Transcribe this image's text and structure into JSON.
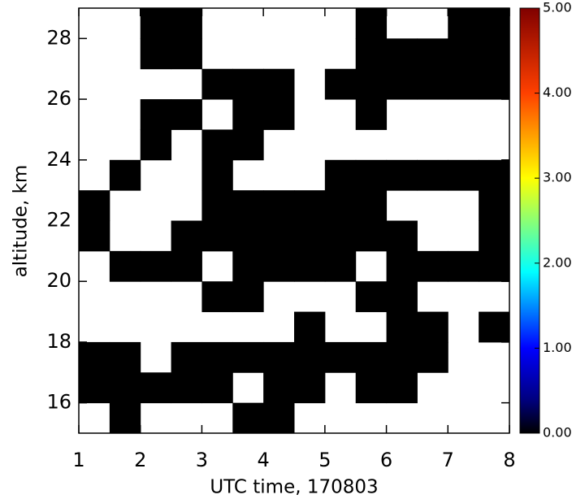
{
  "chart_data": {
    "type": "heatmap",
    "x_label": "UTC time, 170803",
    "y_label": "altitude, km",
    "xlim": [
      1,
      8
    ],
    "xticks": [
      1,
      2,
      3,
      4,
      5,
      6,
      7,
      8
    ],
    "ylim": [
      15,
      29
    ],
    "yticks": [
      16,
      18,
      20,
      22,
      24,
      26,
      28
    ],
    "zlim": [
      0,
      5
    ],
    "zticks": [
      {
        "value": 0,
        "label": "0.00"
      },
      {
        "value": 1,
        "label": "1.00"
      },
      {
        "value": 2,
        "label": "2.00"
      },
      {
        "value": 3,
        "label": "3.00"
      },
      {
        "value": 4,
        "label": "4.00"
      },
      {
        "value": 5,
        "label": "5.00"
      }
    ],
    "z": [
      [
        null,
        null,
        0,
        0,
        null,
        null,
        null,
        null,
        null,
        0,
        null,
        null,
        0,
        0
      ],
      [
        null,
        null,
        0,
        0,
        null,
        null,
        null,
        null,
        null,
        0,
        0,
        0,
        0,
        0
      ],
      [
        null,
        null,
        null,
        null,
        0,
        0,
        0,
        null,
        0,
        0,
        0,
        0,
        0,
        0
      ],
      [
        null,
        null,
        0,
        0,
        null,
        0,
        0,
        null,
        null,
        0,
        null,
        null,
        null,
        null
      ],
      [
        null,
        null,
        0,
        null,
        0,
        0,
        null,
        null,
        null,
        null,
        null,
        null,
        null,
        null
      ],
      [
        null,
        0,
        null,
        null,
        0,
        null,
        null,
        null,
        0,
        0,
        0,
        0,
        0,
        0
      ],
      [
        0,
        null,
        null,
        null,
        0,
        0,
        0,
        0,
        0,
        0,
        null,
        null,
        null,
        0
      ],
      [
        0,
        null,
        null,
        0,
        0,
        0,
        0,
        0,
        0,
        0,
        0,
        null,
        null,
        0
      ],
      [
        null,
        0,
        0,
        0,
        null,
        0,
        0,
        0,
        0,
        null,
        0,
        0,
        0,
        0
      ],
      [
        null,
        null,
        null,
        null,
        0,
        0,
        null,
        null,
        null,
        0,
        0,
        null,
        null,
        null
      ],
      [
        null,
        null,
        null,
        null,
        null,
        null,
        null,
        0,
        null,
        null,
        0,
        0,
        null,
        0
      ],
      [
        0,
        0,
        null,
        0,
        0,
        0,
        0,
        0,
        0,
        0,
        0,
        0,
        null,
        null
      ],
      [
        0,
        0,
        0,
        0,
        0,
        null,
        0,
        0,
        null,
        0,
        0,
        null,
        null,
        null
      ],
      [
        null,
        0,
        null,
        null,
        null,
        0,
        0,
        null,
        null,
        null,
        null,
        null,
        null,
        null
      ]
    ]
  }
}
